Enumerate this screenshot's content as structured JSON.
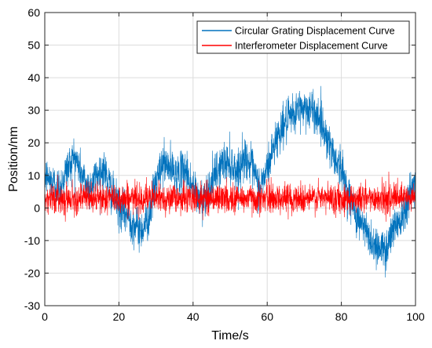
{
  "chart_data": {
    "type": "line",
    "xlabel": "Time/s",
    "ylabel": "Position/nm",
    "xlim": [
      0,
      100
    ],
    "ylim": [
      -30,
      60
    ],
    "xticks": [
      0,
      20,
      40,
      60,
      80,
      100
    ],
    "yticks": [
      -30,
      -20,
      -10,
      0,
      10,
      20,
      30,
      40,
      50,
      60
    ],
    "grid": true,
    "legend_position": "top-right",
    "series": [
      {
        "name": "Circular Grating Displacement Curve",
        "color": "#0072BD",
        "x": [
          0,
          2,
          4,
          6,
          8,
          10,
          12,
          14,
          16,
          18,
          20,
          22,
          24,
          26,
          28,
          30,
          32,
          34,
          36,
          38,
          40,
          42,
          44,
          46,
          48,
          50,
          52,
          54,
          56,
          58,
          60,
          62,
          64,
          66,
          68,
          70,
          72,
          74,
          76,
          78,
          80,
          82,
          84,
          86,
          88,
          90,
          92,
          94,
          96,
          98,
          100
        ],
        "values": [
          10,
          8,
          6,
          12,
          16,
          10,
          6,
          10,
          12,
          5,
          0,
          -2,
          -5,
          -7,
          -3,
          8,
          14,
          12,
          10,
          12,
          6,
          2,
          5,
          10,
          14,
          14,
          11,
          16,
          12,
          6,
          12,
          20,
          25,
          27,
          30,
          31,
          30,
          28,
          22,
          16,
          12,
          4,
          -2,
          -6,
          -10,
          -12,
          -13,
          -6,
          -3,
          3,
          8
        ],
        "noise_amplitude": 7
      },
      {
        "name": "Interferometer Displacement Curve",
        "color": "#FF0000",
        "x": [
          0,
          100
        ],
        "values": [
          3,
          3
        ],
        "noise_amplitude": 5
      }
    ]
  }
}
